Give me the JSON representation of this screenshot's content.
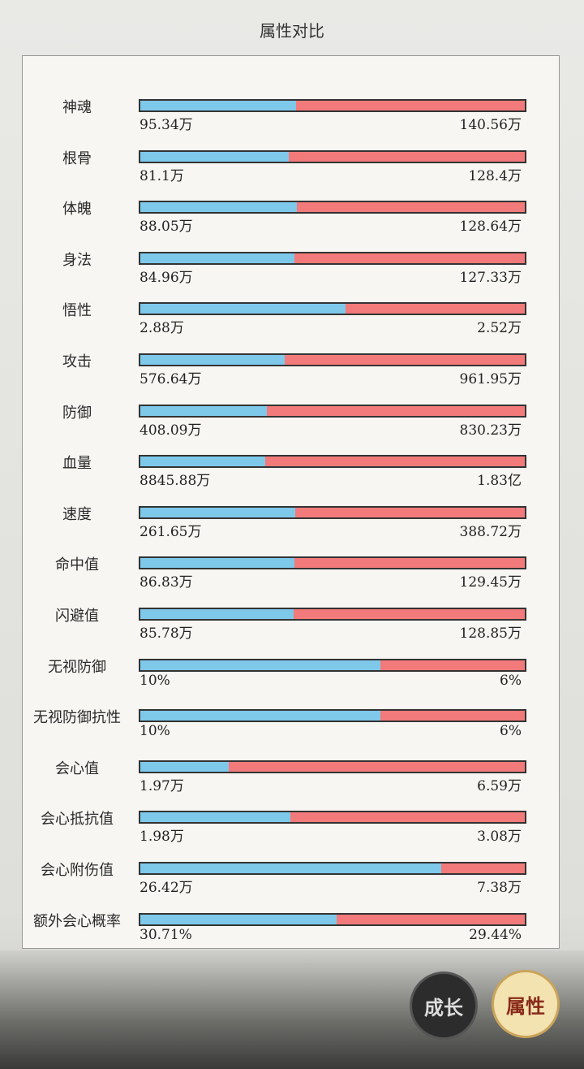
{
  "header": {
    "title": "属性对比"
  },
  "rows": [
    {
      "label": "神魂",
      "left": {
        "value": 95.34,
        "label": "95.34万"
      },
      "right": {
        "value": 140.56,
        "label": "140.56万"
      }
    },
    {
      "label": "根骨",
      "left": {
        "value": 81.1,
        "label": "81.1万"
      },
      "right": {
        "value": 128.4,
        "label": "128.4万"
      }
    },
    {
      "label": "体魄",
      "left": {
        "value": 88.05,
        "label": "88.05万"
      },
      "right": {
        "value": 128.64,
        "label": "128.64万"
      }
    },
    {
      "label": "身法",
      "left": {
        "value": 84.96,
        "label": "84.96万"
      },
      "right": {
        "value": 127.33,
        "label": "127.33万"
      }
    },
    {
      "label": "悟性",
      "left": {
        "value": 2.88,
        "label": "2.88万"
      },
      "right": {
        "value": 2.52,
        "label": "2.52万"
      }
    },
    {
      "label": "攻击",
      "left": {
        "value": 576.64,
        "label": "576.64万"
      },
      "right": {
        "value": 961.95,
        "label": "961.95万"
      }
    },
    {
      "label": "防御",
      "left": {
        "value": 408.09,
        "label": "408.09万"
      },
      "right": {
        "value": 830.23,
        "label": "830.23万"
      }
    },
    {
      "label": "血量",
      "left": {
        "value": 8845.88,
        "label": "8845.88万"
      },
      "right": {
        "value": 18300,
        "label": "1.83亿"
      }
    },
    {
      "label": "速度",
      "left": {
        "value": 261.65,
        "label": "261.65万"
      },
      "right": {
        "value": 388.72,
        "label": "388.72万"
      }
    },
    {
      "label": "命中值",
      "left": {
        "value": 86.83,
        "label": "86.83万"
      },
      "right": {
        "value": 129.45,
        "label": "129.45万"
      }
    },
    {
      "label": "闪避值",
      "left": {
        "value": 85.78,
        "label": "85.78万"
      },
      "right": {
        "value": 128.85,
        "label": "128.85万"
      }
    },
    {
      "label": "无视防御",
      "left": {
        "value": 10,
        "label": "10%"
      },
      "right": {
        "value": 6,
        "label": "6%"
      }
    },
    {
      "label": "无视防御抗性",
      "left": {
        "value": 10,
        "label": "10%"
      },
      "right": {
        "value": 6,
        "label": "6%"
      }
    },
    {
      "label": "会心值",
      "left": {
        "value": 1.97,
        "label": "1.97万"
      },
      "right": {
        "value": 6.59,
        "label": "6.59万"
      }
    },
    {
      "label": "会心抵抗值",
      "left": {
        "value": 1.98,
        "label": "1.98万"
      },
      "right": {
        "value": 3.08,
        "label": "3.08万"
      }
    },
    {
      "label": "会心附伤值",
      "left": {
        "value": 26.42,
        "label": "26.42万"
      },
      "right": {
        "value": 7.38,
        "label": "7.38万"
      }
    },
    {
      "label": "额外会心概率",
      "left": {
        "value": 30.71,
        "label": "30.71%"
      },
      "right": {
        "value": 29.44,
        "label": "29.44%"
      }
    }
  ],
  "buttons": [
    {
      "label": "成长"
    },
    {
      "label": "属性"
    }
  ]
}
